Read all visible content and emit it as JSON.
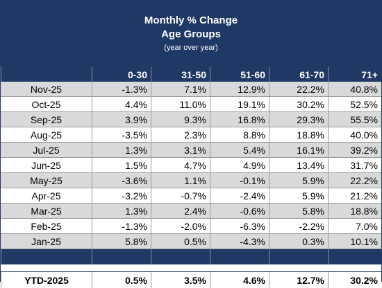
{
  "chart_data": {
    "type": "table",
    "title": "Monthly % Change",
    "subtitle": "Age Groups",
    "note": "(year over year)",
    "columns": [
      "",
      "0-30",
      "31-50",
      "51-60",
      "61-70",
      "71+"
    ],
    "rows": [
      {
        "label": "Nov-25",
        "values": [
          "-1.3%",
          "7.1%",
          "12.9%",
          "22.2%",
          "40.8%"
        ]
      },
      {
        "label": "Oct-25",
        "values": [
          "4.4%",
          "11.0%",
          "19.1%",
          "30.2%",
          "52.5%"
        ]
      },
      {
        "label": "Sep-25",
        "values": [
          "3.9%",
          "9.3%",
          "16.8%",
          "29.3%",
          "55.5%"
        ]
      },
      {
        "label": "Aug-25",
        "values": [
          "-3.5%",
          "2.3%",
          "8.8%",
          "18.8%",
          "40.0%"
        ]
      },
      {
        "label": "Jul-25",
        "values": [
          "1.3%",
          "3.1%",
          "5.4%",
          "16.1%",
          "39.2%"
        ]
      },
      {
        "label": "Jun-25",
        "values": [
          "1.5%",
          "4.7%",
          "4.9%",
          "13.4%",
          "31.7%"
        ]
      },
      {
        "label": "May-25",
        "values": [
          "-3.6%",
          "1.1%",
          "-0.1%",
          "5.9%",
          "22.2%"
        ]
      },
      {
        "label": "Apr-25",
        "values": [
          "-3.2%",
          "-0.7%",
          "-2.4%",
          "5.9%",
          "21.2%"
        ]
      },
      {
        "label": "Mar-25",
        "values": [
          "1.3%",
          "2.4%",
          "-0.6%",
          "5.8%",
          "18.8%"
        ]
      },
      {
        "label": "Feb-25",
        "values": [
          "-1.3%",
          "-2.0%",
          "-6.3%",
          "-2.2%",
          "7.0%"
        ]
      },
      {
        "label": "Jan-25",
        "values": [
          "5.8%",
          "0.5%",
          "-4.3%",
          "0.3%",
          "10.1%"
        ]
      }
    ],
    "summary": {
      "label": "YTD-2025",
      "values": [
        "0.5%",
        "3.5%",
        "4.6%",
        "12.7%",
        "30.2%"
      ]
    },
    "colors": {
      "header": "#1f3864",
      "shaded_row": "#d9d9d9",
      "row": "#ffffff"
    }
  }
}
